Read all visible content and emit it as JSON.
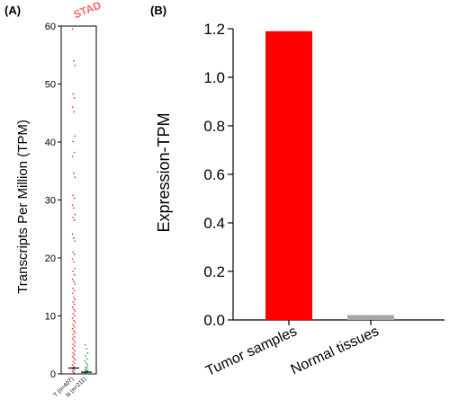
{
  "chart_data": [
    {
      "panel_label": "(A)",
      "type": "scatter",
      "title": "STAD",
      "ylabel": "Transcripts Per Million (TPM)",
      "ylim": [
        0,
        60
      ],
      "yticks": [
        0,
        10,
        20,
        30,
        40,
        50,
        60
      ],
      "categories": [
        "T (n=407)",
        "N (n=211)"
      ],
      "title_color": "#f26b6b",
      "series": [
        {
          "color": "#e83a3a",
          "median": 1.0,
          "values": [
            59.5,
            54.0,
            53.2,
            48.3,
            47.6,
            46.0,
            45.2,
            41.0,
            40.1,
            38.2,
            37.5,
            34.6,
            33.9,
            30.8,
            30.3,
            29.1,
            28.6,
            27.5,
            27.0,
            26.5,
            24.1,
            23.4,
            22.9,
            21.0,
            20.6,
            19.8,
            19.3,
            18.2,
            17.7,
            17.1,
            16.3,
            15.9,
            15.5,
            14.7,
            14.3,
            13.9,
            13.2,
            12.8,
            12.4,
            12.0,
            11.5,
            11.1,
            10.8,
            10.4,
            10.0,
            9.6,
            9.2,
            8.9,
            8.5,
            8.1,
            7.8,
            7.4,
            7.1,
            6.8,
            6.4,
            6.1,
            5.8,
            5.4,
            5.1,
            4.8,
            4.5,
            4.2,
            3.9,
            3.6,
            3.3,
            3.0,
            2.7,
            2.4,
            2.1,
            1.8,
            1.5,
            1.2,
            1.0,
            0.8,
            0.6,
            0.4,
            0.2
          ]
        },
        {
          "color": "#2e9e3e",
          "median": 0.3,
          "values": [
            5.0,
            4.3,
            3.6,
            3.1,
            2.6,
            2.2,
            1.8,
            1.5,
            1.2,
            1.0,
            0.8,
            0.6,
            0.5,
            0.4,
            0.3,
            0.2,
            0.1
          ]
        }
      ]
    },
    {
      "panel_label": "(B)",
      "type": "bar",
      "ylabel": "Expression-TPM",
      "ylim": [
        0,
        1.2
      ],
      "yticks": [
        "0.0",
        "0.2",
        "0.4",
        "0.6",
        "0.8",
        "1.0",
        "1.2"
      ],
      "categories": [
        "Tumor samples",
        "Normal tissues"
      ],
      "values": [
        1.19,
        0.02
      ],
      "colors": [
        "#ff0000",
        "#a6a6a6"
      ]
    }
  ]
}
